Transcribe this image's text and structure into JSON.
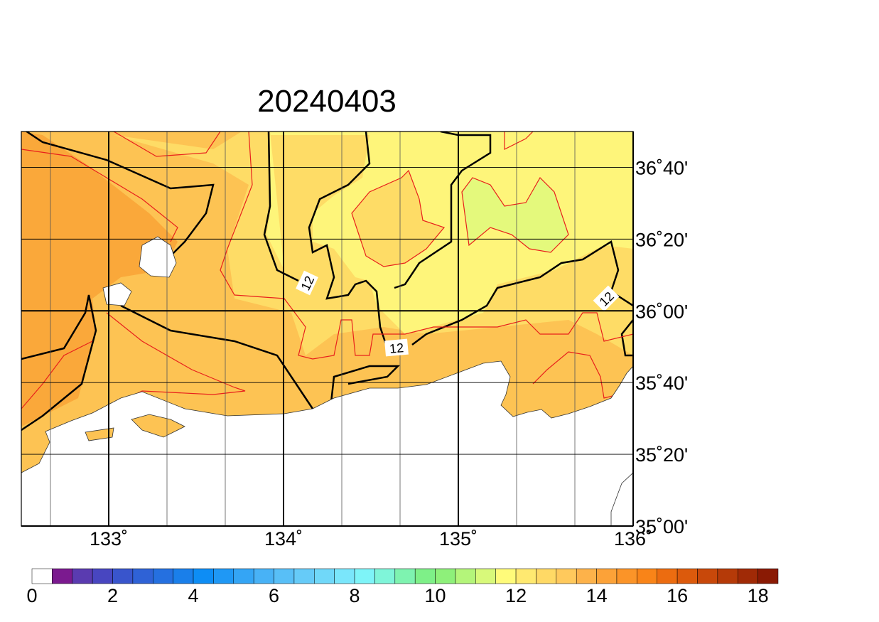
{
  "chart_data": {
    "type": "map",
    "title": "20240403",
    "xlim": [
      132.5,
      136
    ],
    "ylim": [
      35,
      36.8333
    ],
    "xticks": [
      {
        "value": 133,
        "label": "133˚"
      },
      {
        "value": 134,
        "label": "134˚"
      },
      {
        "value": 135,
        "label": "135˚"
      },
      {
        "value": 136,
        "label": "136˚"
      }
    ],
    "yticks": [
      {
        "value": 35,
        "label": "35˚00'"
      },
      {
        "value": 35.3333,
        "label": "35˚20'"
      },
      {
        "value": 35.6667,
        "label": "35˚40'"
      },
      {
        "value": 36,
        "label": "36˚00'"
      },
      {
        "value": 36.3333,
        "label": "36˚20'"
      },
      {
        "value": 36.6667,
        "label": "36˚40'"
      }
    ],
    "contour_labels": [
      "12",
      "12",
      "12"
    ],
    "colorbar": {
      "lim": [
        0,
        18.5
      ],
      "ticks": [
        0,
        2,
        4,
        6,
        8,
        10,
        12,
        14,
        16,
        18
      ],
      "colors": [
        "#ffffff",
        "#7b1a8f",
        "#5a3bb0",
        "#4846c0",
        "#3955cc",
        "#2f62d6",
        "#2570e0",
        "#1a7fea",
        "#0d8df5",
        "#1f98f5",
        "#34a5f5",
        "#48b2f6",
        "#58bff7",
        "#66cbf8",
        "#70d8f9",
        "#7ae6fb",
        "#7ef4f8",
        "#7ff5d9",
        "#7ef3b0",
        "#7ef088",
        "#8ef07a",
        "#b4f57a",
        "#d8f97a",
        "#fffb7a",
        "#ffe970",
        "#ffd965",
        "#ffc95c",
        "#fdb24a",
        "#fca238",
        "#fb9428",
        "#f98418",
        "#ec6c10",
        "#dc5a0c",
        "#c8480a",
        "#b53a08",
        "#a02a06",
        "#8a1a04"
      ]
    }
  }
}
